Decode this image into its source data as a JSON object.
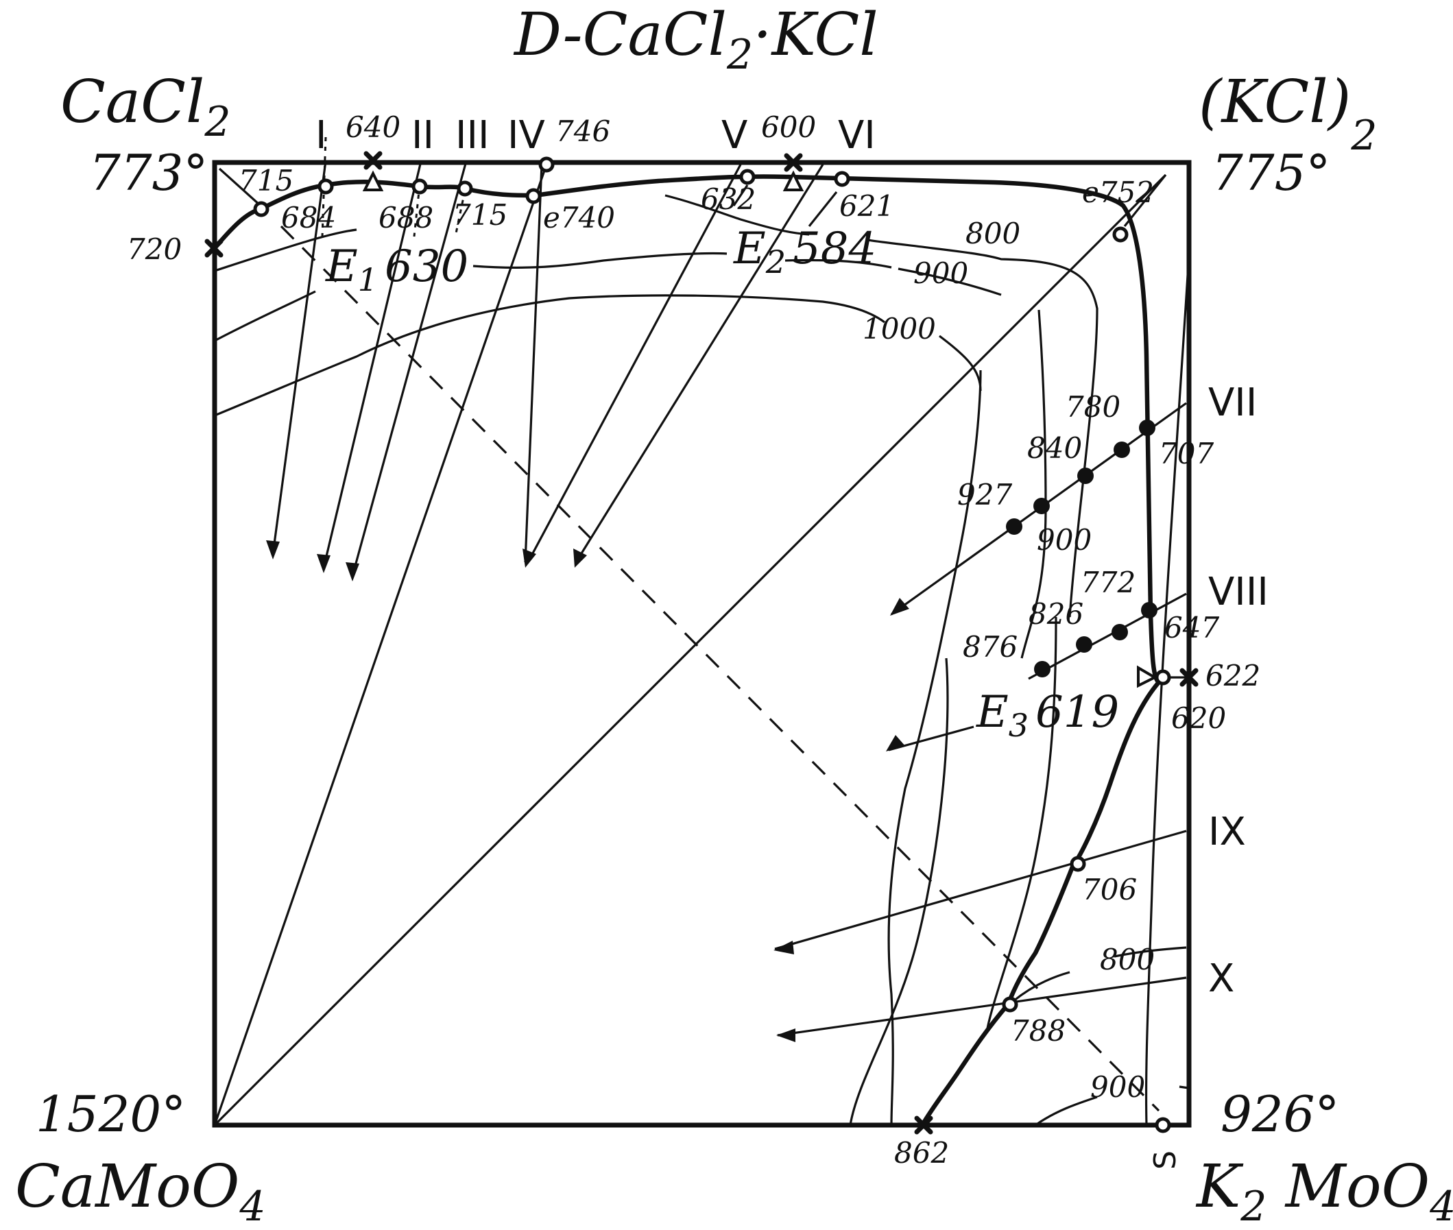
{
  "title": {
    "prefix": "D-CaCl",
    "sub": "2",
    "suffix": "·KCl"
  },
  "corners": {
    "top_left": {
      "compound": "CaCl",
      "sub": "2",
      "temp": "773°"
    },
    "top_right": {
      "compound": "(KCl)",
      "sub": "2",
      "temp": "775°"
    },
    "bottom_left": {
      "compound": "CaMoO",
      "sub": "4",
      "temp": "1520°"
    },
    "bottom_right": {
      "compound": "K",
      "sub1": "2",
      "compound2": "MoO",
      "sub2": "4",
      "temp": "926°"
    }
  },
  "sections": [
    "I",
    "II",
    "III",
    "IV",
    "V",
    "VI",
    "VII",
    "VIII",
    "IX",
    "X"
  ],
  "eutectics": {
    "e1": {
      "letter": "E",
      "sub": "1",
      "temp": "630"
    },
    "e2": {
      "letter": "E",
      "sub": "2",
      "temp": "584"
    },
    "e3": {
      "letter": "E",
      "sub": "3",
      "temp": "619"
    }
  },
  "top_edge_labels": [
    "640",
    "746",
    "600"
  ],
  "top_curve_labels": [
    "715",
    "684",
    "688",
    "715",
    "e740",
    "632",
    "621",
    "e752"
  ],
  "left_edge_label": "720",
  "isotherm_labels": [
    "800",
    "900",
    "1000",
    "800",
    "900"
  ],
  "right_points": [
    "780",
    "840",
    "707",
    "927",
    "900",
    "772",
    "826",
    "647",
    "876",
    "622",
    "620",
    "706",
    "788"
  ],
  "bottom_labels": {
    "k2moo4_transition": "862",
    "s_mark": "S"
  }
}
